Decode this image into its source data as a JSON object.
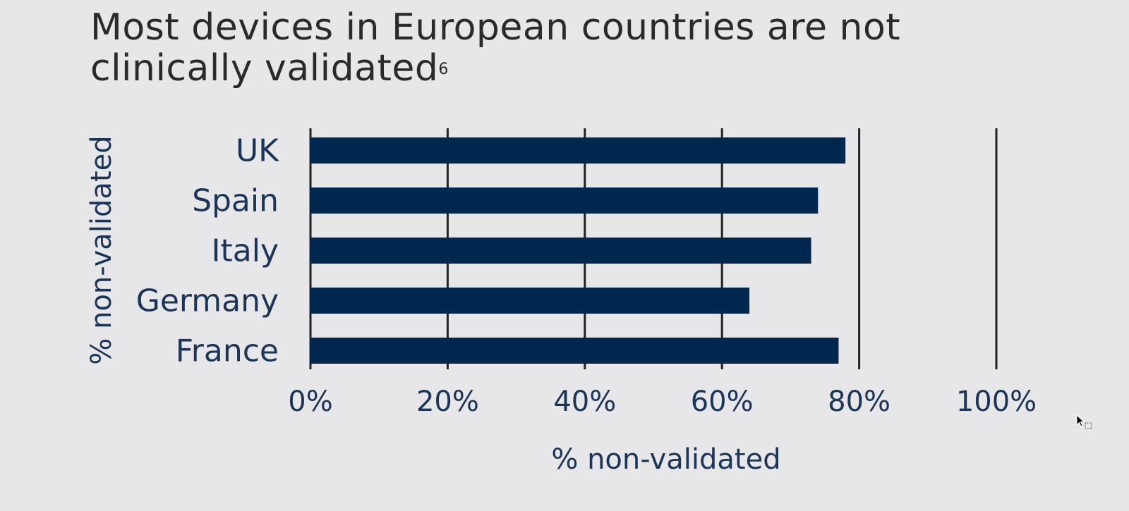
{
  "title": {
    "text": "Most devices in European countries are not clinically validated",
    "line1": "Most devices in European countries are not",
    "line2": "clinically validated",
    "superscript": "6"
  },
  "chart_data": {
    "type": "bar",
    "orientation": "horizontal",
    "categories": [
      "UK",
      "Spain",
      "Italy",
      "Germany",
      "France"
    ],
    "values": [
      78,
      74,
      73,
      64,
      77
    ],
    "xlabel": "% non-validated",
    "ylabel": "% non-validated",
    "xlim": [
      0,
      100
    ],
    "xticks": [
      0,
      20,
      40,
      60,
      80,
      100
    ],
    "xtick_labels": [
      "0%",
      "20%",
      "40%",
      "60%",
      "80%",
      "100%"
    ],
    "grid": true,
    "bar_color": "#00284f",
    "text_color": "#1c3557",
    "grid_color": "#222222"
  },
  "cursor": {
    "icon": "mouse-cursor-icon"
  }
}
